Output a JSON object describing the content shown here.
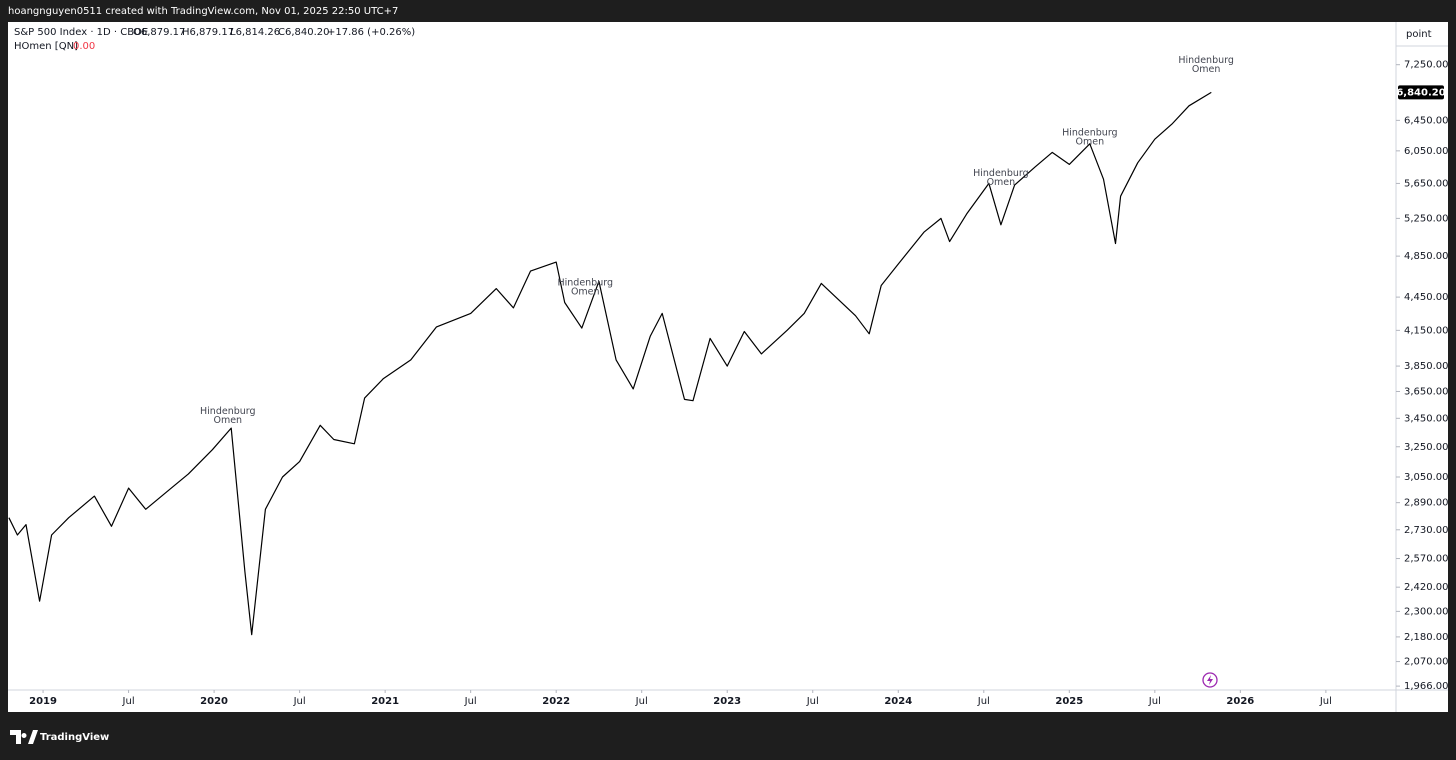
{
  "header": {
    "credit": "hoangnguyen0511 created with TradingView.com, Nov 01, 2025 22:50 UTC+7"
  },
  "legend": {
    "symbol": "S&P 500 Index · 1D · CBOE",
    "open": "O6,879.17",
    "high": "H6,879.17",
    "low": "L6,814.26",
    "close": "C6,840.20",
    "change": "+17.86 (+0.26%)"
  },
  "indicator": {
    "name": "HOmen [QN]",
    "value": "0.00"
  },
  "scale_unit": "point",
  "footer": {
    "brand": "TradingView"
  },
  "chart_data": {
    "type": "line",
    "color": "#000000",
    "log_scale": true,
    "xlim": [
      2018.795,
      2026.91
    ],
    "ylim": [
      1950,
      7930
    ],
    "xticks": [
      {
        "value": 2019,
        "label": "2019"
      },
      {
        "value": 2019.5,
        "label": "Jul"
      },
      {
        "value": 2020,
        "label": "2020"
      },
      {
        "value": 2020.5,
        "label": "Jul"
      },
      {
        "value": 2021,
        "label": "2021"
      },
      {
        "value": 2021.5,
        "label": "Jul"
      },
      {
        "value": 2022,
        "label": "2022"
      },
      {
        "value": 2022.5,
        "label": "Jul"
      },
      {
        "value": 2023,
        "label": "2023"
      },
      {
        "value": 2023.5,
        "label": "Jul"
      },
      {
        "value": 2024,
        "label": "2024"
      },
      {
        "value": 2024.5,
        "label": "Jul"
      },
      {
        "value": 2025,
        "label": "2025"
      },
      {
        "value": 2025.5,
        "label": "Jul"
      },
      {
        "value": 2026,
        "label": "2026"
      },
      {
        "value": 2026.5,
        "label": "Jul"
      }
    ],
    "yticks": [
      {
        "value": 7250,
        "label": "7,250.00"
      },
      {
        "value": 6450,
        "label": "6,450.00"
      },
      {
        "value": 6050,
        "label": "6,050.00"
      },
      {
        "value": 5650,
        "label": "5,650.00"
      },
      {
        "value": 5250,
        "label": "5,250.00"
      },
      {
        "value": 4850,
        "label": "4,850.00"
      },
      {
        "value": 4450,
        "label": "4,450.00"
      },
      {
        "value": 4150,
        "label": "4,150.00"
      },
      {
        "value": 3850,
        "label": "3,850.00"
      },
      {
        "value": 3650,
        "label": "3,650.00"
      },
      {
        "value": 3450,
        "label": "3,450.00"
      },
      {
        "value": 3250,
        "label": "3,250.00"
      },
      {
        "value": 3050,
        "label": "3,050.00"
      },
      {
        "value": 2890,
        "label": "2,890.00"
      },
      {
        "value": 2730,
        "label": "2,730.00"
      },
      {
        "value": 2570,
        "label": "2,570.00"
      },
      {
        "value": 2420,
        "label": "2,420.00"
      },
      {
        "value": 2300,
        "label": "2,300.00"
      },
      {
        "value": 2180,
        "label": "2,180.00"
      },
      {
        "value": 2070,
        "label": "2,070.00"
      },
      {
        "value": 1966,
        "label": "1,966.00"
      }
    ],
    "last_price": {
      "value": 6840.2,
      "label": "6,840.20"
    },
    "x": [
      2018.8,
      2018.85,
      2018.9,
      2018.98,
      2019.05,
      2019.15,
      2019.3,
      2019.4,
      2019.5,
      2019.6,
      2019.75,
      2019.85,
      2019.99,
      2020.1,
      2020.18,
      2020.22,
      2020.3,
      2020.4,
      2020.5,
      2020.62,
      2020.7,
      2020.82,
      2020.88,
      2020.99,
      2021.15,
      2021.3,
      2021.5,
      2021.65,
      2021.75,
      2021.85,
      2022.0,
      2022.05,
      2022.15,
      2022.25,
      2022.35,
      2022.45,
      2022.55,
      2022.62,
      2022.75,
      2022.8,
      2022.9,
      2023.0,
      2023.1,
      2023.2,
      2023.35,
      2023.45,
      2023.55,
      2023.75,
      2023.83,
      2023.9,
      2024.0,
      2024.15,
      2024.25,
      2024.3,
      2024.4,
      2024.53,
      2024.6,
      2024.68,
      2024.8,
      2024.9,
      2025.0,
      2025.12,
      2025.2,
      2025.27,
      2025.3,
      2025.4,
      2025.5,
      2025.6,
      2025.7,
      2025.83
    ],
    "values": [
      2800,
      2700,
      2760,
      2350,
      2700,
      2800,
      2930,
      2750,
      2980,
      2850,
      2980,
      3070,
      3230,
      3380,
      2500,
      2190,
      2850,
      3050,
      3150,
      3400,
      3300,
      3270,
      3600,
      3750,
      3900,
      4180,
      4300,
      4530,
      4350,
      4700,
      4790,
      4400,
      4170,
      4600,
      3900,
      3670,
      4100,
      4300,
      3590,
      3580,
      4080,
      3850,
      4140,
      3950,
      4150,
      4300,
      4580,
      4280,
      4120,
      4560,
      4770,
      5100,
      5250,
      5000,
      5300,
      5650,
      5180,
      5630,
      5850,
      6030,
      5880,
      6140,
      5700,
      4980,
      5500,
      5900,
      6200,
      6400,
      6650,
      6840
    ],
    "annotations": [
      {
        "x": 2020.08,
        "y": 3400,
        "lines": [
          "Hindenburg",
          "Omen"
        ]
      },
      {
        "x": 2022.17,
        "y": 4450,
        "lines": [
          "Hindenburg",
          "Omen"
        ]
      },
      {
        "x": 2024.6,
        "y": 5600,
        "lines": [
          "Hindenburg",
          "Omen"
        ]
      },
      {
        "x": 2025.12,
        "y": 6100,
        "lines": [
          "Hindenburg",
          "Omen"
        ]
      },
      {
        "x": 2025.8,
        "y": 7100,
        "lines": [
          "Hindenburg",
          "Omen"
        ]
      }
    ]
  }
}
